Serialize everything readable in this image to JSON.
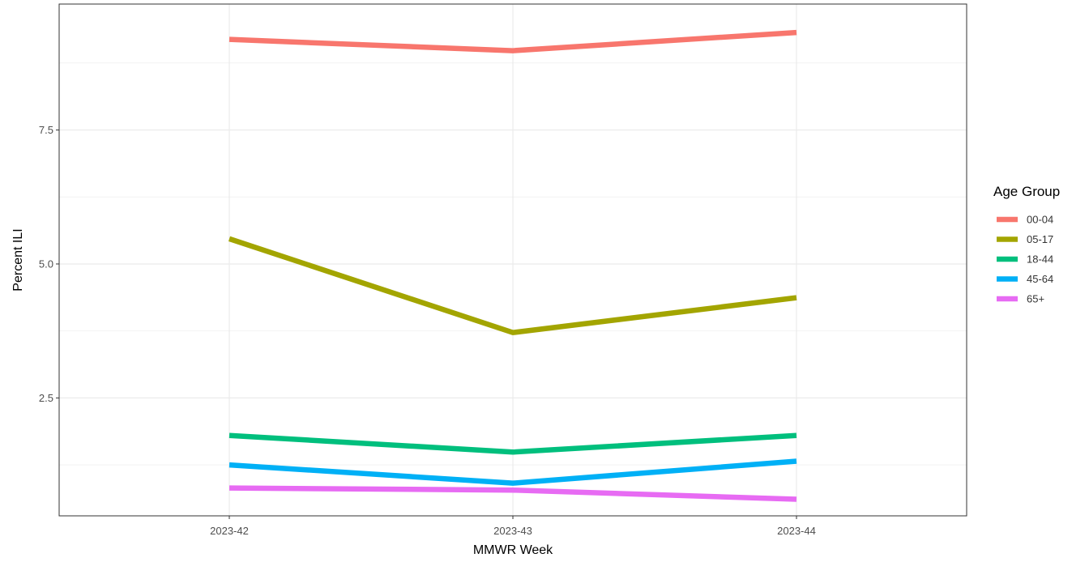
{
  "chart_data": {
    "type": "line",
    "title": "",
    "xlabel": "MMWR Week",
    "ylabel": "Percent ILI",
    "categories": [
      "2023-42",
      "2023-43",
      "2023-44"
    ],
    "ylim": [
      0.3,
      9.85
    ],
    "y_ticks": [
      2.5,
      5.0,
      7.5
    ],
    "y_tick_labels": [
      "2.5",
      "5.0",
      "7.5"
    ],
    "grid": true,
    "legend": {
      "title": "Age Group",
      "position": "right"
    },
    "series": [
      {
        "name": "00-04",
        "color": "#F8766D",
        "values": [
          9.19,
          8.98,
          9.32
        ]
      },
      {
        "name": "05-17",
        "color": "#A3A500",
        "values": [
          5.47,
          3.72,
          4.37
        ]
      },
      {
        "name": "18-44",
        "color": "#00BF7D",
        "values": [
          1.8,
          1.49,
          1.8
        ]
      },
      {
        "name": "45-64",
        "color": "#00B0F6",
        "values": [
          1.25,
          0.91,
          1.32
        ]
      },
      {
        "name": "65+",
        "color": "#E76BF3",
        "values": [
          0.82,
          0.78,
          0.61
        ]
      }
    ]
  }
}
